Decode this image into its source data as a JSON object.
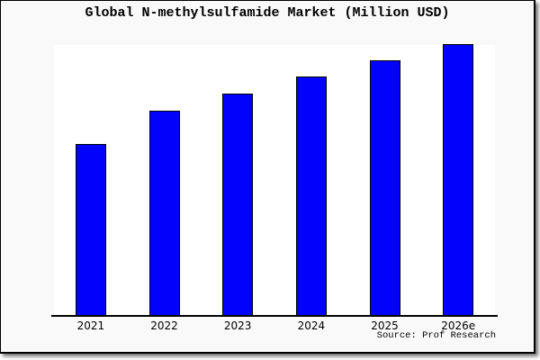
{
  "page": {
    "background_color": "#ffffff",
    "frame_background_color": "#f9f9f9",
    "frame_border_color": "#000000"
  },
  "title": "Global N-methylsulfamide Market (Million USD)",
  "source": "Source: Prof Research",
  "chart_data": {
    "type": "bar",
    "title": "Global N-methylsulfamide Market (Million USD)",
    "categories": [
      "2021",
      "2022",
      "2023",
      "2024",
      "2025",
      "2026e"
    ],
    "values_relative_pct_of_max": [
      63.0,
      75.3,
      81.7,
      88.0,
      94.0,
      100.0
    ],
    "bar_height_pct_of_plot": [
      62.8,
      75.1,
      81.4,
      87.7,
      93.7,
      99.7
    ],
    "bar_color": "#0202fc",
    "bar_border_color": "#000000",
    "plot_background": "#ffffff",
    "xlabel": "",
    "ylabel": "",
    "y_axis_labels_visible": false,
    "gridlines": false,
    "legend": false,
    "source_label": "Source: Prof Research"
  }
}
